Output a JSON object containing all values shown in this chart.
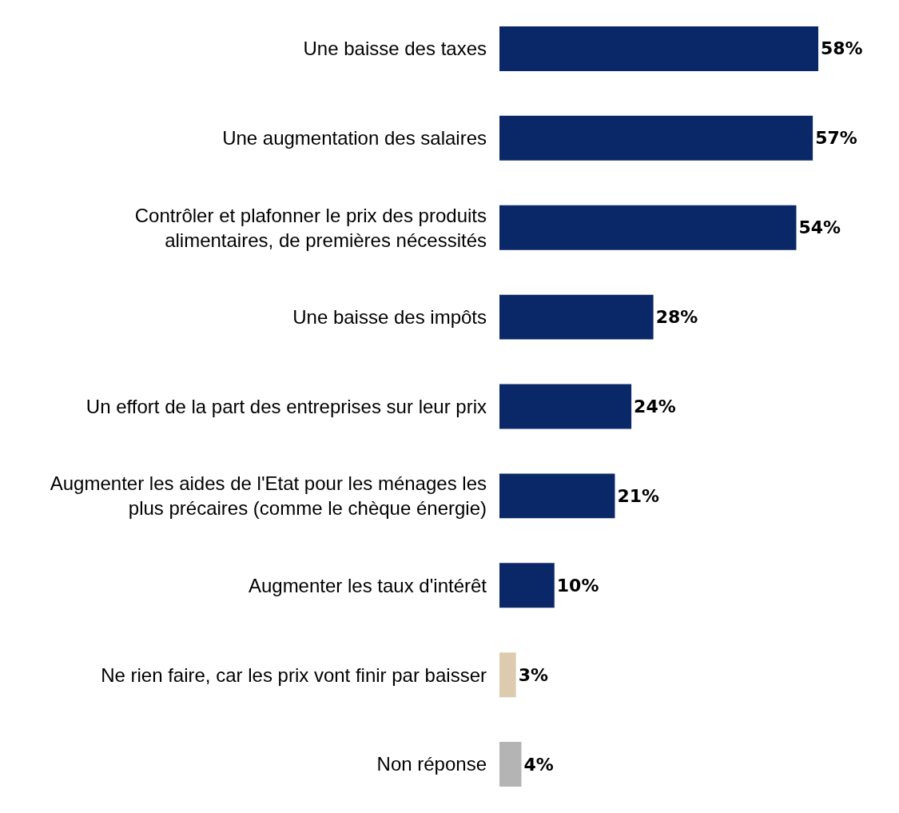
{
  "chart_data": {
    "type": "bar",
    "orientation": "horizontal",
    "categories": [
      "Une baisse des taxes",
      "Une augmentation des salaires",
      "Contrôler et plafonner le prix des produits alimentaires, de premières nécessités",
      "Une baisse des impôts",
      "Un effort de la part des entreprises sur leur prix",
      "Augmenter les aides de l'Etat pour les ménages les plus précaires (comme le chèque énergie)",
      "Augmenter les taux d'intérêt",
      "Ne rien faire, car les prix vont finir par baisser",
      "Non réponse"
    ],
    "values": [
      58,
      57,
      54,
      28,
      24,
      21,
      10,
      3,
      4
    ],
    "colors": [
      "#0a2868",
      "#0a2868",
      "#0a2868",
      "#0a2868",
      "#0a2868",
      "#0a2868",
      "#0a2868",
      "#dccbaf",
      "#b4b4b4"
    ],
    "value_labels": [
      "58%",
      "57%",
      "54%",
      "28%",
      "24%",
      "21%",
      "10%",
      "3%",
      "4%"
    ],
    "legend": false
  }
}
